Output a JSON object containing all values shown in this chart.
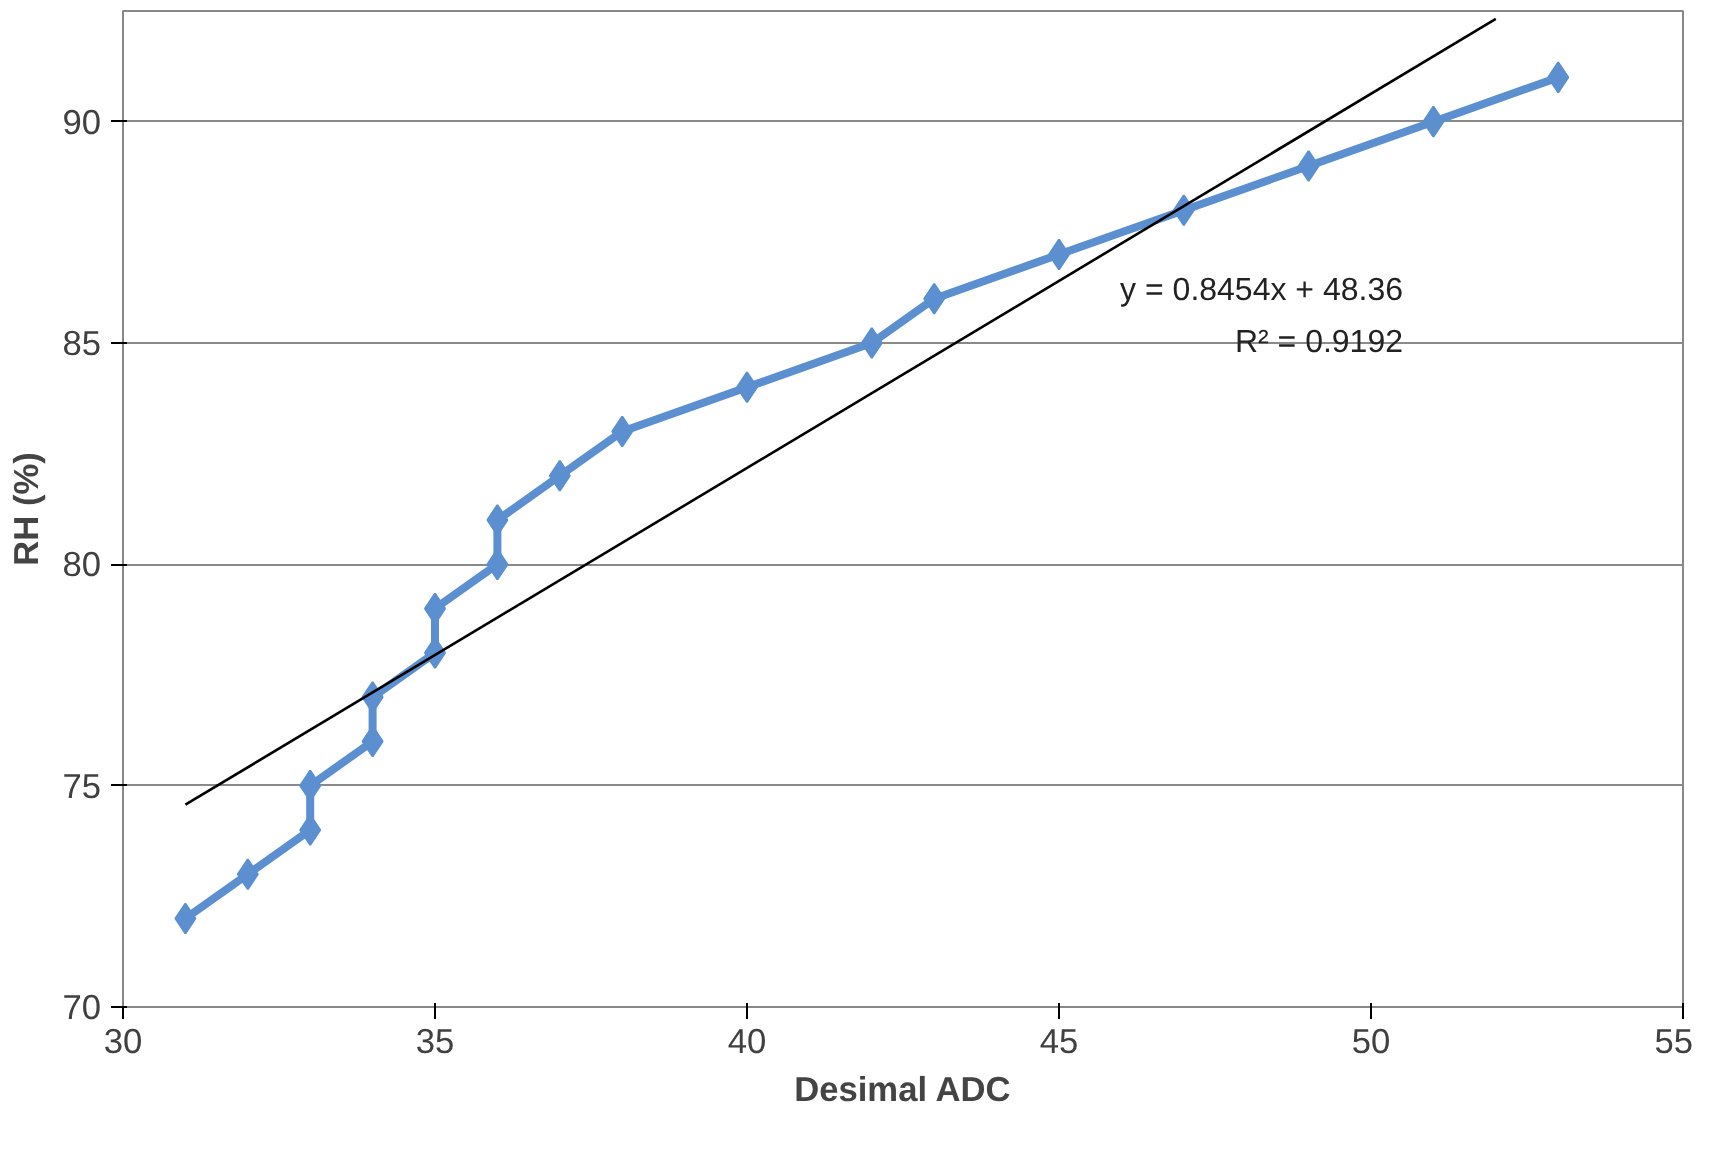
{
  "chart_data": {
    "type": "line",
    "xlabel": "Desimal ADC",
    "ylabel": "RH (%)",
    "series": [
      {
        "color": "#5b8fd0",
        "marker": "diamond",
        "x": [
          31,
          32,
          33,
          33,
          34,
          34,
          35,
          35,
          36,
          36,
          37,
          38,
          40,
          42,
          43,
          45,
          47,
          49,
          51,
          53
        ],
        "values": [
          72,
          73,
          74,
          75,
          76,
          77,
          78,
          79,
          80,
          81,
          82,
          83,
          84,
          85,
          86,
          87,
          88,
          89,
          90,
          91
        ]
      },
      {
        "type": "line",
        "color": "#000000",
        "marker": "none",
        "x": [
          31,
          52
        ],
        "values": [
          74.57,
          92.32
        ]
      }
    ],
    "annotations": [
      "y = 0.8454x + 48.36",
      "R² = 0.9192"
    ],
    "xlim": [
      30,
      55
    ],
    "xticks": [
      30,
      35,
      40,
      45,
      50,
      55
    ],
    "ylim": [
      70,
      92.5
    ],
    "yticks": [
      70,
      75,
      80,
      85,
      90
    ],
    "grid": "y"
  }
}
